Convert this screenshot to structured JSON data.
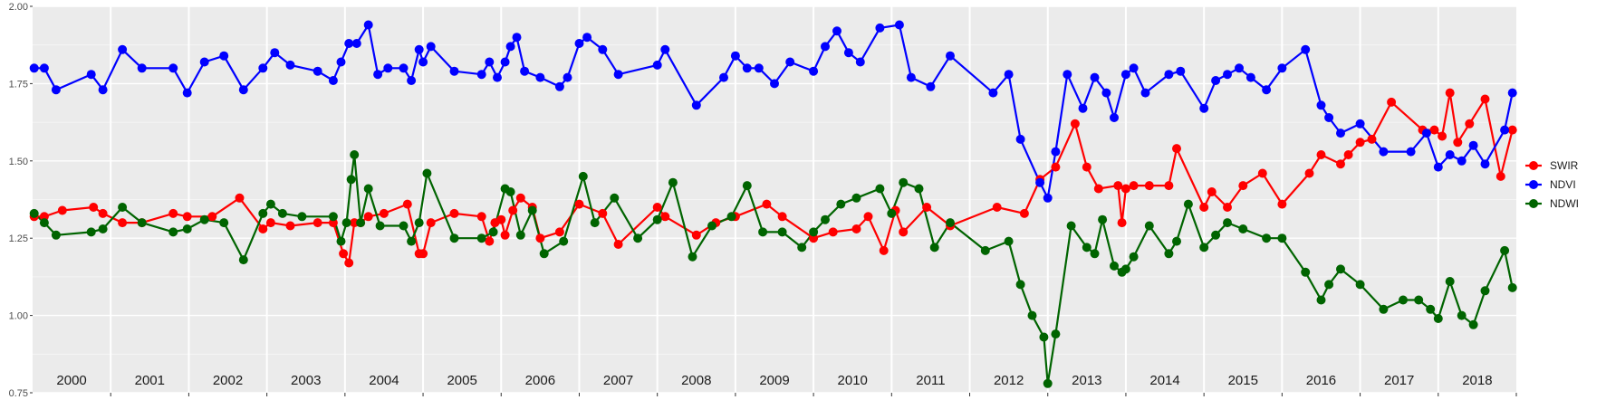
{
  "chart_data": {
    "type": "line",
    "ylim": [
      0.75,
      2.0
    ],
    "y_ticks": [
      "0.75",
      "1.00",
      "1.25",
      "1.50",
      "1.75",
      "2.00"
    ],
    "y_tick_values": [
      0.75,
      1.0,
      1.25,
      1.5,
      1.75,
      2.0
    ],
    "xlim": [
      2000.0,
      2019.0
    ],
    "panels": [
      {
        "label": "2000",
        "year": 2000
      },
      {
        "label": "2001",
        "year": 2001
      },
      {
        "label": "2002",
        "year": 2002
      },
      {
        "label": "2003",
        "year": 2003
      },
      {
        "label": "2004",
        "year": 2004
      },
      {
        "label": "2005",
        "year": 2005
      },
      {
        "label": "2006",
        "year": 2006
      },
      {
        "label": "2007",
        "year": 2007
      },
      {
        "label": "2008",
        "year": 2008
      },
      {
        "label": "2009",
        "year": 2009
      },
      {
        "label": "2010",
        "year": 2010
      },
      {
        "label": "2011",
        "year": 2011
      },
      {
        "label": "2012",
        "year": 2012
      },
      {
        "label": "2013",
        "year": 2013
      },
      {
        "label": "2014",
        "year": 2014
      },
      {
        "label": "2015",
        "year": 2015
      },
      {
        "label": "2016",
        "year": 2016
      },
      {
        "label": "2017",
        "year": 2017
      },
      {
        "label": "2018",
        "year": 2018
      }
    ],
    "grid": true,
    "legend_position": "right",
    "series": [
      {
        "name": "SWIR",
        "color": "#ff0000",
        "x": [
          2000.02,
          2000.15,
          2000.38,
          2000.78,
          2000.9,
          2001.15,
          2001.4,
          2001.8,
          2001.98,
          2002.3,
          2002.65,
          2002.95,
          2003.05,
          2003.3,
          2003.65,
          2003.85,
          2003.98,
          2004.05,
          2004.12,
          2004.2,
          2004.3,
          2004.5,
          2004.8,
          2004.95,
          2005.0,
          2005.1,
          2005.4,
          2005.75,
          2005.85,
          2005.92,
          2006.0,
          2006.05,
          2006.15,
          2006.25,
          2006.4,
          2006.5,
          2006.75,
          2007.0,
          2007.3,
          2007.5,
          2008.0,
          2008.1,
          2008.5,
          2008.75,
          2009.0,
          2009.4,
          2009.6,
          2010.0,
          2010.25,
          2010.55,
          2010.7,
          2010.9,
          2011.05,
          2011.15,
          2011.45,
          2011.75,
          2012.35,
          2012.7,
          2012.9,
          2013.1,
          2013.35,
          2013.5,
          2013.65,
          2013.9,
          2013.95,
          2014.0,
          2014.1,
          2014.3,
          2014.55,
          2014.65,
          2015.0,
          2015.1,
          2015.3,
          2015.5,
          2015.75,
          2016.0,
          2016.35,
          2016.5,
          2016.75,
          2016.85,
          2017.0,
          2017.15,
          2017.4,
          2017.8,
          2017.95,
          2018.05,
          2018.15,
          2018.25,
          2018.4,
          2018.6,
          2018.8,
          2018.95
        ],
        "values": [
          1.32,
          1.32,
          1.34,
          1.35,
          1.33,
          1.3,
          1.3,
          1.33,
          1.32,
          1.32,
          1.38,
          1.28,
          1.3,
          1.29,
          1.3,
          1.3,
          1.2,
          1.17,
          1.3,
          1.3,
          1.32,
          1.33,
          1.36,
          1.2,
          1.2,
          1.3,
          1.33,
          1.32,
          1.24,
          1.3,
          1.31,
          1.26,
          1.34,
          1.38,
          1.35,
          1.25,
          1.27,
          1.36,
          1.33,
          1.23,
          1.35,
          1.32,
          1.26,
          1.3,
          1.32,
          1.36,
          1.32,
          1.25,
          1.27,
          1.28,
          1.32,
          1.21,
          1.34,
          1.27,
          1.35,
          1.29,
          1.35,
          1.33,
          1.44,
          1.48,
          1.62,
          1.48,
          1.41,
          1.42,
          1.3,
          1.41,
          1.42,
          1.42,
          1.42,
          1.54,
          1.35,
          1.4,
          1.35,
          1.42,
          1.46,
          1.36,
          1.46,
          1.52,
          1.49,
          1.52,
          1.56,
          1.57,
          1.69,
          1.6,
          1.6,
          1.58,
          1.72,
          1.56,
          1.62,
          1.7,
          1.45,
          1.6
        ]
      },
      {
        "name": "NDVI",
        "color": "#0000ff",
        "x": [
          2000.02,
          2000.15,
          2000.3,
          2000.75,
          2000.9,
          2001.15,
          2001.4,
          2001.8,
          2001.98,
          2002.2,
          2002.45,
          2002.7,
          2002.95,
          2003.1,
          2003.3,
          2003.65,
          2003.85,
          2003.95,
          2004.05,
          2004.15,
          2004.3,
          2004.42,
          2004.55,
          2004.75,
          2004.85,
          2004.95,
          2005.0,
          2005.1,
          2005.4,
          2005.75,
          2005.85,
          2005.95,
          2006.05,
          2006.12,
          2006.2,
          2006.3,
          2006.5,
          2006.75,
          2006.85,
          2007.0,
          2007.1,
          2007.3,
          2007.5,
          2008.0,
          2008.1,
          2008.5,
          2008.85,
          2009.0,
          2009.15,
          2009.3,
          2009.5,
          2009.7,
          2010.0,
          2010.15,
          2010.3,
          2010.45,
          2010.6,
          2010.85,
          2011.1,
          2011.25,
          2011.5,
          2011.75,
          2012.3,
          2012.5,
          2012.65,
          2012.9,
          2013.0,
          2013.1,
          2013.25,
          2013.45,
          2013.6,
          2013.75,
          2013.85,
          2014.0,
          2014.1,
          2014.25,
          2014.55,
          2014.7,
          2015.0,
          2015.15,
          2015.3,
          2015.45,
          2015.6,
          2015.8,
          2016.0,
          2016.3,
          2016.5,
          2016.6,
          2016.75,
          2017.0,
          2017.3,
          2017.65,
          2017.85,
          2018.0,
          2018.15,
          2018.3,
          2018.45,
          2018.6,
          2018.85,
          2018.95
        ],
        "values": [
          1.8,
          1.8,
          1.73,
          1.78,
          1.73,
          1.86,
          1.8,
          1.8,
          1.72,
          1.82,
          1.84,
          1.73,
          1.8,
          1.85,
          1.81,
          1.79,
          1.76,
          1.82,
          1.88,
          1.88,
          1.94,
          1.78,
          1.8,
          1.8,
          1.76,
          1.86,
          1.82,
          1.87,
          1.79,
          1.78,
          1.82,
          1.77,
          1.82,
          1.87,
          1.9,
          1.79,
          1.77,
          1.74,
          1.77,
          1.88,
          1.9,
          1.86,
          1.78,
          1.81,
          1.86,
          1.68,
          1.77,
          1.84,
          1.8,
          1.8,
          1.75,
          1.82,
          1.79,
          1.87,
          1.92,
          1.85,
          1.82,
          1.93,
          1.94,
          1.77,
          1.74,
          1.84,
          1.72,
          1.78,
          1.57,
          1.43,
          1.38,
          1.53,
          1.78,
          1.67,
          1.77,
          1.72,
          1.64,
          1.78,
          1.8,
          1.72,
          1.78,
          1.79,
          1.67,
          1.76,
          1.78,
          1.8,
          1.77,
          1.73,
          1.8,
          1.86,
          1.68,
          1.64,
          1.59,
          1.62,
          1.53,
          1.53,
          1.59,
          1.48,
          1.52,
          1.5,
          1.55,
          1.49,
          1.6,
          1.72
        ]
      },
      {
        "name": "NDWI",
        "color": "#006400",
        "x": [
          2000.02,
          2000.15,
          2000.3,
          2000.75,
          2000.9,
          2001.15,
          2001.4,
          2001.8,
          2001.98,
          2002.2,
          2002.45,
          2002.7,
          2002.95,
          2003.05,
          2003.2,
          2003.45,
          2003.85,
          2003.95,
          2004.02,
          2004.08,
          2004.12,
          2004.2,
          2004.3,
          2004.45,
          2004.75,
          2004.85,
          2004.95,
          2005.05,
          2005.4,
          2005.75,
          2005.9,
          2006.05,
          2006.12,
          2006.25,
          2006.4,
          2006.55,
          2006.8,
          2007.05,
          2007.2,
          2007.45,
          2007.75,
          2008.0,
          2008.2,
          2008.45,
          2008.7,
          2008.95,
          2009.15,
          2009.35,
          2009.6,
          2009.85,
          2010.0,
          2010.15,
          2010.35,
          2010.55,
          2010.85,
          2011.0,
          2011.15,
          2011.35,
          2011.55,
          2011.75,
          2012.2,
          2012.5,
          2012.65,
          2012.8,
          2012.95,
          2013.0,
          2013.1,
          2013.3,
          2013.5,
          2013.6,
          2013.7,
          2013.85,
          2013.95,
          2014.0,
          2014.1,
          2014.3,
          2014.55,
          2014.65,
          2014.8,
          2015.0,
          2015.15,
          2015.3,
          2015.5,
          2015.8,
          2016.0,
          2016.3,
          2016.5,
          2016.6,
          2016.75,
          2017.0,
          2017.3,
          2017.55,
          2017.75,
          2017.9,
          2018.0,
          2018.15,
          2018.3,
          2018.45,
          2018.6,
          2018.85,
          2018.95
        ],
        "values": [
          1.33,
          1.3,
          1.26,
          1.27,
          1.28,
          1.35,
          1.3,
          1.27,
          1.28,
          1.31,
          1.3,
          1.18,
          1.33,
          1.36,
          1.33,
          1.32,
          1.32,
          1.24,
          1.3,
          1.44,
          1.52,
          1.3,
          1.41,
          1.29,
          1.29,
          1.24,
          1.3,
          1.46,
          1.25,
          1.25,
          1.27,
          1.41,
          1.4,
          1.26,
          1.34,
          1.2,
          1.24,
          1.45,
          1.3,
          1.38,
          1.25,
          1.31,
          1.43,
          1.19,
          1.29,
          1.32,
          1.42,
          1.27,
          1.27,
          1.22,
          1.27,
          1.31,
          1.36,
          1.38,
          1.41,
          1.33,
          1.43,
          1.41,
          1.22,
          1.3,
          1.21,
          1.24,
          1.1,
          1.0,
          0.93,
          0.78,
          0.94,
          1.29,
          1.22,
          1.2,
          1.31,
          1.16,
          1.14,
          1.15,
          1.19,
          1.29,
          1.2,
          1.24,
          1.36,
          1.22,
          1.26,
          1.3,
          1.28,
          1.25,
          1.25,
          1.14,
          1.05,
          1.1,
          1.15,
          1.1,
          1.02,
          1.05,
          1.05,
          1.02,
          0.99,
          1.11,
          1.0,
          0.97,
          1.08,
          1.21,
          1.09
        ]
      }
    ]
  }
}
